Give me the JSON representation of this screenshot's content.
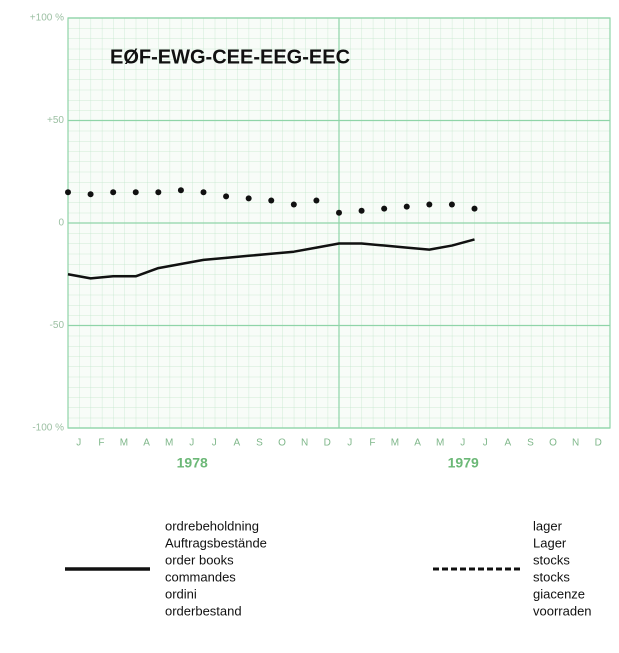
{
  "chart_data": {
    "type": "line",
    "title": "EØF-EWG-CEE-EEG-EEC",
    "categories": [
      "J",
      "F",
      "M",
      "A",
      "M",
      "J",
      "J",
      "A",
      "S",
      "O",
      "N",
      "D",
      "J",
      "F",
      "M",
      "A",
      "M",
      "J",
      "J",
      "A",
      "S",
      "O",
      "N",
      "D"
    ],
    "year_labels": [
      "1978",
      "1979"
    ],
    "ylim": [
      -100,
      100
    ],
    "yticks": [
      {
        "value": -100,
        "label": "-100 %"
      },
      -50,
      0,
      {
        "value": 50,
        "label": "+50"
      },
      {
        "value": 100,
        "label": "+100 %"
      }
    ],
    "grid": true,
    "series": [
      {
        "name": [
          "ordrebeholdning",
          "Auftragsbestände",
          "order books",
          "commandes",
          "ordini",
          "orderbestand"
        ],
        "color": "#111111",
        "style": "solid",
        "values": [
          -25,
          -27,
          -26,
          -26,
          -22,
          -20,
          -18,
          -17,
          -16,
          -15,
          -14,
          -12,
          -10,
          -10,
          -11,
          -12,
          -13,
          -11,
          -8,
          null,
          null,
          null,
          null,
          null
        ]
      },
      {
        "name": [
          "lager",
          "Lager",
          "stocks",
          "stocks",
          "giacenze",
          "voorraden"
        ],
        "color": "#111111",
        "style": "dotted",
        "values": [
          15,
          14,
          15,
          15,
          15,
          16,
          15,
          13,
          12,
          11,
          9,
          11,
          5,
          6,
          7,
          8,
          9,
          9,
          7,
          null,
          null,
          null,
          null,
          null
        ]
      }
    ]
  }
}
